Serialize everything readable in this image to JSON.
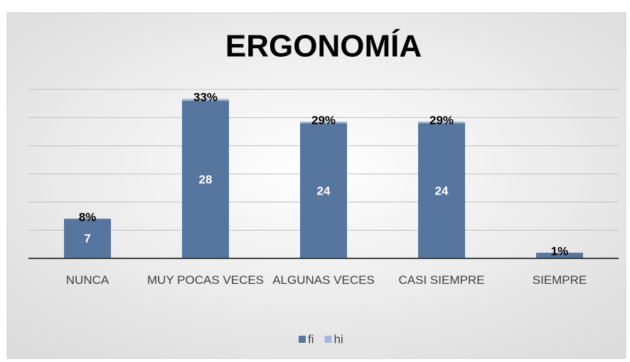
{
  "chart_data": {
    "type": "stacked_bar",
    "title": "ERGONOMÍA",
    "categories": [
      "NUNCA",
      "MUY POCAS VECES",
      "ALGUNAS VECES",
      "CASI SIEMPRE",
      "SIEMPRE"
    ],
    "series": [
      {
        "name": "fi",
        "color": "#56759f",
        "values": [
          7,
          28,
          24,
          24,
          1
        ]
      },
      {
        "name": "hi",
        "color": "#a3b7d8",
        "values": [
          0.08,
          0.33,
          0.29,
          0.29,
          0.01
        ],
        "value_labels": [
          "8%",
          "33%",
          "29%",
          "29%",
          "1%"
        ]
      }
    ],
    "ylim": [
      0,
      30
    ],
    "yticks": [
      0,
      5,
      10,
      15,
      20,
      25,
      30
    ],
    "grid": true,
    "legend": "bottom"
  }
}
